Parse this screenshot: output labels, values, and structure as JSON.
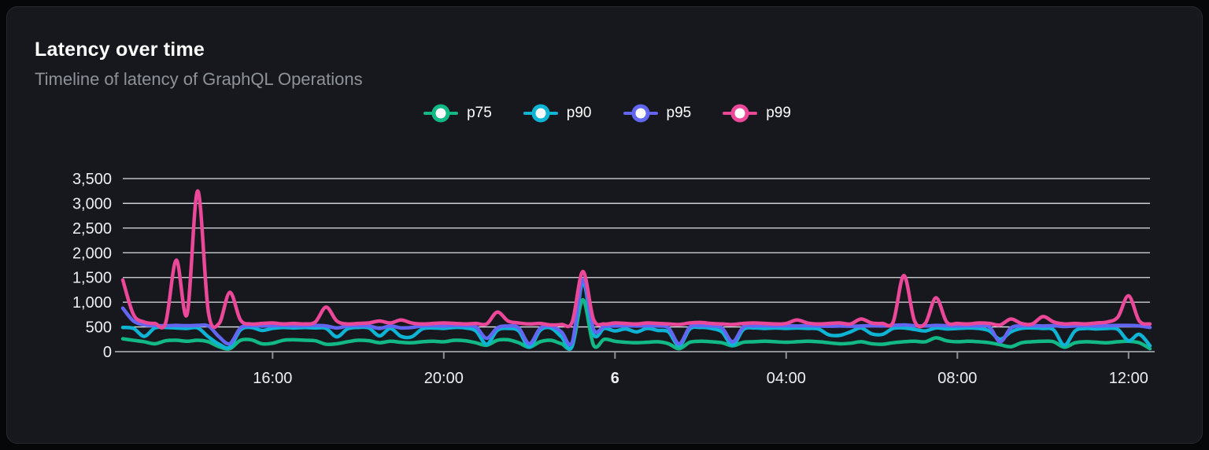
{
  "card": {
    "title": "Latency over time",
    "subtitle": "Timeline of latency of GraphQL Operations"
  },
  "colors": {
    "page_background": "#060708",
    "card_background": "#16181d",
    "card_border": "#26292e",
    "title_text": "#ffffff",
    "subtitle_text": "#8e9299",
    "grid_line": "#dee2e6",
    "axis_line": "#8d9096",
    "tick_label": "#edeff2"
  },
  "chart_data": {
    "type": "line",
    "title": "Latency over time",
    "subtitle": "Timeline of latency of GraphQL Operations",
    "xlabel": "",
    "ylabel": "",
    "ylim": [
      0,
      3500
    ],
    "grid": "horizontal",
    "legend_position": "top-center",
    "x_start": "12:30",
    "x_step_minutes": 15,
    "x_day_boundary_label": "6",
    "y_ticks": [
      {
        "value": 0,
        "label": "0"
      },
      {
        "value": 500,
        "label": "500"
      },
      {
        "value": 1000,
        "label": "1,000"
      },
      {
        "value": 1500,
        "label": "1,500"
      },
      {
        "value": 2000,
        "label": "2,000"
      },
      {
        "value": 2500,
        "label": "2,500"
      },
      {
        "value": 3000,
        "label": "3,000"
      },
      {
        "value": 3500,
        "label": "3,500"
      }
    ],
    "x_ticks": [
      {
        "index": 14,
        "label": "16:00",
        "bold": false
      },
      {
        "index": 30,
        "label": "20:00",
        "bold": false
      },
      {
        "index": 46,
        "label": "6",
        "bold": true
      },
      {
        "index": 62,
        "label": "04:00",
        "bold": false
      },
      {
        "index": 78,
        "label": "08:00",
        "bold": false
      },
      {
        "index": 94,
        "label": "12:00",
        "bold": false
      }
    ],
    "series": [
      {
        "name": "p75",
        "color": "#12b886",
        "values": [
          260,
          230,
          200,
          160,
          220,
          230,
          210,
          230,
          200,
          100,
          60,
          230,
          240,
          160,
          170,
          230,
          240,
          230,
          220,
          150,
          160,
          200,
          230,
          220,
          180,
          210,
          190,
          180,
          200,
          210,
          200,
          230,
          220,
          180,
          130,
          230,
          240,
          180,
          90,
          200,
          230,
          160,
          110,
          1050,
          130,
          250,
          210,
          190,
          180,
          190,
          200,
          160,
          60,
          190,
          210,
          200,
          180,
          120,
          190,
          200,
          210,
          200,
          190,
          200,
          210,
          200,
          180,
          160,
          170,
          200,
          160,
          150,
          180,
          200,
          210,
          200,
          280,
          220,
          200,
          210,
          200,
          180,
          140,
          100,
          180,
          200,
          210,
          200,
          90,
          180,
          200,
          190,
          180,
          200,
          210,
          180,
          60
        ]
      },
      {
        "name": "p90",
        "color": "#0db4d4",
        "values": [
          490,
          470,
          310,
          480,
          490,
          480,
          470,
          480,
          300,
          150,
          90,
          440,
          490,
          430,
          470,
          490,
          480,
          490,
          480,
          470,
          300,
          460,
          490,
          480,
          320,
          470,
          310,
          300,
          460,
          480,
          470,
          490,
          480,
          420,
          150,
          430,
          470,
          420,
          90,
          430,
          480,
          300,
          110,
          1400,
          350,
          470,
          420,
          460,
          400,
          470,
          430,
          400,
          120,
          460,
          490,
          470,
          400,
          130,
          450,
          480,
          470,
          480,
          470,
          480,
          470,
          460,
          340,
          330,
          400,
          480,
          360,
          350,
          470,
          480,
          450,
          420,
          480,
          460,
          470,
          480,
          470,
          420,
          250,
          400,
          470,
          480,
          470,
          440,
          130,
          420,
          470,
          460,
          470,
          450,
          220,
          350,
          120
        ]
      },
      {
        "name": "p95",
        "color": "#6366f1",
        "values": [
          880,
          620,
          545,
          530,
          525,
          530,
          525,
          530,
          520,
          300,
          160,
          480,
          525,
          520,
          525,
          530,
          520,
          525,
          530,
          520,
          480,
          520,
          525,
          520,
          470,
          520,
          480,
          490,
          520,
          525,
          520,
          530,
          525,
          500,
          270,
          480,
          520,
          480,
          160,
          470,
          520,
          400,
          190,
          1460,
          450,
          510,
          520,
          525,
          520,
          525,
          520,
          480,
          160,
          500,
          525,
          520,
          480,
          200,
          500,
          520,
          525,
          520,
          525,
          520,
          525,
          520,
          515,
          520,
          515,
          520,
          525,
          520,
          530,
          540,
          525,
          520,
          530,
          525,
          520,
          525,
          520,
          500,
          200,
          480,
          520,
          525,
          520,
          525,
          510,
          520,
          525,
          520,
          525,
          530,
          530,
          520,
          490
        ]
      },
      {
        "name": "p99",
        "color": "#ec4899",
        "values": [
          1450,
          750,
          600,
          570,
          580,
          1850,
          750,
          3250,
          800,
          570,
          1200,
          640,
          560,
          570,
          580,
          560,
          570,
          560,
          600,
          900,
          620,
          560,
          570,
          580,
          620,
          580,
          640,
          580,
          560,
          570,
          580,
          570,
          560,
          570,
          560,
          800,
          620,
          580,
          560,
          570,
          540,
          550,
          600,
          1620,
          650,
          560,
          580,
          570,
          560,
          580,
          570,
          560,
          550,
          580,
          590,
          570,
          560,
          550,
          570,
          580,
          570,
          560,
          570,
          640,
          580,
          560,
          570,
          580,
          560,
          660,
          580,
          570,
          600,
          1540,
          620,
          570,
          1090,
          600,
          570,
          560,
          580,
          570,
          540,
          660,
          570,
          560,
          710,
          600,
          560,
          570,
          560,
          580,
          600,
          700,
          1130,
          620,
          560
        ]
      }
    ]
  }
}
